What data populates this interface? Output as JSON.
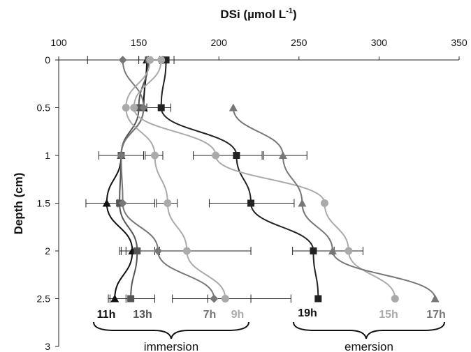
{
  "chart_data": {
    "type": "line",
    "title": "",
    "xlabel": "DSi (µmol L",
    "xlabel_sup": "-1",
    "xlabel_close": ")",
    "ylabel": "Depth (cm)",
    "xlim": [
      100,
      350
    ],
    "ylim": [
      0,
      3
    ],
    "y_inverted": true,
    "x_ticks": [
      100,
      150,
      200,
      250,
      300,
      350
    ],
    "y_ticks": [
      0,
      0.5,
      1,
      1.5,
      2,
      2.5,
      3
    ],
    "series": [
      {
        "name": "11h",
        "color": "#111111",
        "marker": "triangle",
        "points": [
          [
            155,
            0
          ],
          [
            153,
            0.5
          ],
          [
            139,
            1
          ],
          [
            130,
            1.5
          ],
          [
            146,
            2
          ],
          [
            135,
            2.5
          ]
        ],
        "err": [
          null,
          null,
          null,
          [
            117,
            160
          ],
          null,
          [
            131,
            142
          ]
        ]
      },
      {
        "name": "13h",
        "color": "#555555",
        "marker": "square",
        "points": [
          [
            156,
            0
          ],
          [
            150,
            0.5
          ],
          [
            139,
            1
          ],
          [
            138,
            1.5
          ],
          [
            149,
            2
          ],
          [
            145,
            2.5
          ]
        ],
        "err": [
          null,
          [
            147,
            153
          ],
          [
            125,
            153
          ],
          [
            137,
            140
          ],
          [
            139,
            160
          ],
          [
            132,
            160
          ]
        ]
      },
      {
        "name": "7h",
        "color": "#777777",
        "marker": "diamond",
        "points": [
          [
            140,
            0
          ],
          [
            153,
            0.5
          ],
          [
            139,
            1
          ],
          [
            140,
            1.5
          ],
          [
            162,
            2
          ],
          [
            197,
            2.5
          ]
        ],
        "err": [
          [
            118,
            156
          ],
          null,
          null,
          null,
          [
            142,
            163
          ],
          [
            171,
            220
          ]
        ]
      },
      {
        "name": "9h",
        "color": "#aaaaaa",
        "marker": "circle",
        "points": [
          [
            157,
            0
          ],
          [
            142,
            0.5
          ],
          [
            160,
            1
          ],
          [
            168,
            1.5
          ],
          [
            180,
            2
          ],
          [
            204,
            2.5
          ]
        ],
        "err": [
          [
            150,
            165
          ],
          [
            150,
            155
          ],
          [
            154,
            165
          ],
          [
            161,
            174
          ],
          [
            138,
            220
          ],
          [
            193,
            245
          ]
        ]
      },
      {
        "name": "19h",
        "color": "#222222",
        "marker": "square",
        "points": [
          [
            167,
            0
          ],
          [
            164,
            0.5
          ],
          [
            211,
            1
          ],
          [
            220,
            1.5
          ],
          [
            259,
            2
          ],
          [
            262,
            2.5
          ]
        ],
        "err": [
          [
            163,
            172
          ],
          [
            155,
            170
          ],
          [
            184,
            227
          ],
          [
            194,
            247
          ],
          [
            246,
            272
          ],
          null
        ]
      },
      {
        "name": "15h",
        "color": "#aaaaaa",
        "marker": "circle",
        "points": [
          [
            164,
            0
          ],
          [
            147,
            0.5
          ],
          [
            198,
            1
          ],
          [
            266,
            1.5
          ],
          [
            281,
            2
          ],
          [
            310,
            2.5
          ]
        ],
        "err": [
          null,
          null,
          null,
          null,
          [
            271,
            290
          ],
          null
        ]
      },
      {
        "name": "17h",
        "color": "#777777",
        "marker": "triangle",
        "points": [
          [
            209,
            0.5
          ],
          [
            240,
            1
          ],
          [
            252,
            1.5
          ],
          [
            271,
            2
          ],
          [
            335,
            2.5
          ]
        ],
        "err": [
          null,
          [
            228,
            255
          ],
          null,
          null,
          null
        ]
      }
    ],
    "labels": [
      {
        "text": "11h",
        "color": "#111111"
      },
      {
        "text": "13h",
        "color": "#555555"
      },
      {
        "text": "7h",
        "color": "#777777"
      },
      {
        "text": "9h",
        "color": "#aaaaaa"
      },
      {
        "text": "19h",
        "color": "#111111"
      },
      {
        "text": "15h",
        "color": "#aaaaaa"
      },
      {
        "text": "17h",
        "color": "#777777"
      }
    ],
    "groups": [
      "immersion",
      "emersion"
    ],
    "grid": false
  }
}
